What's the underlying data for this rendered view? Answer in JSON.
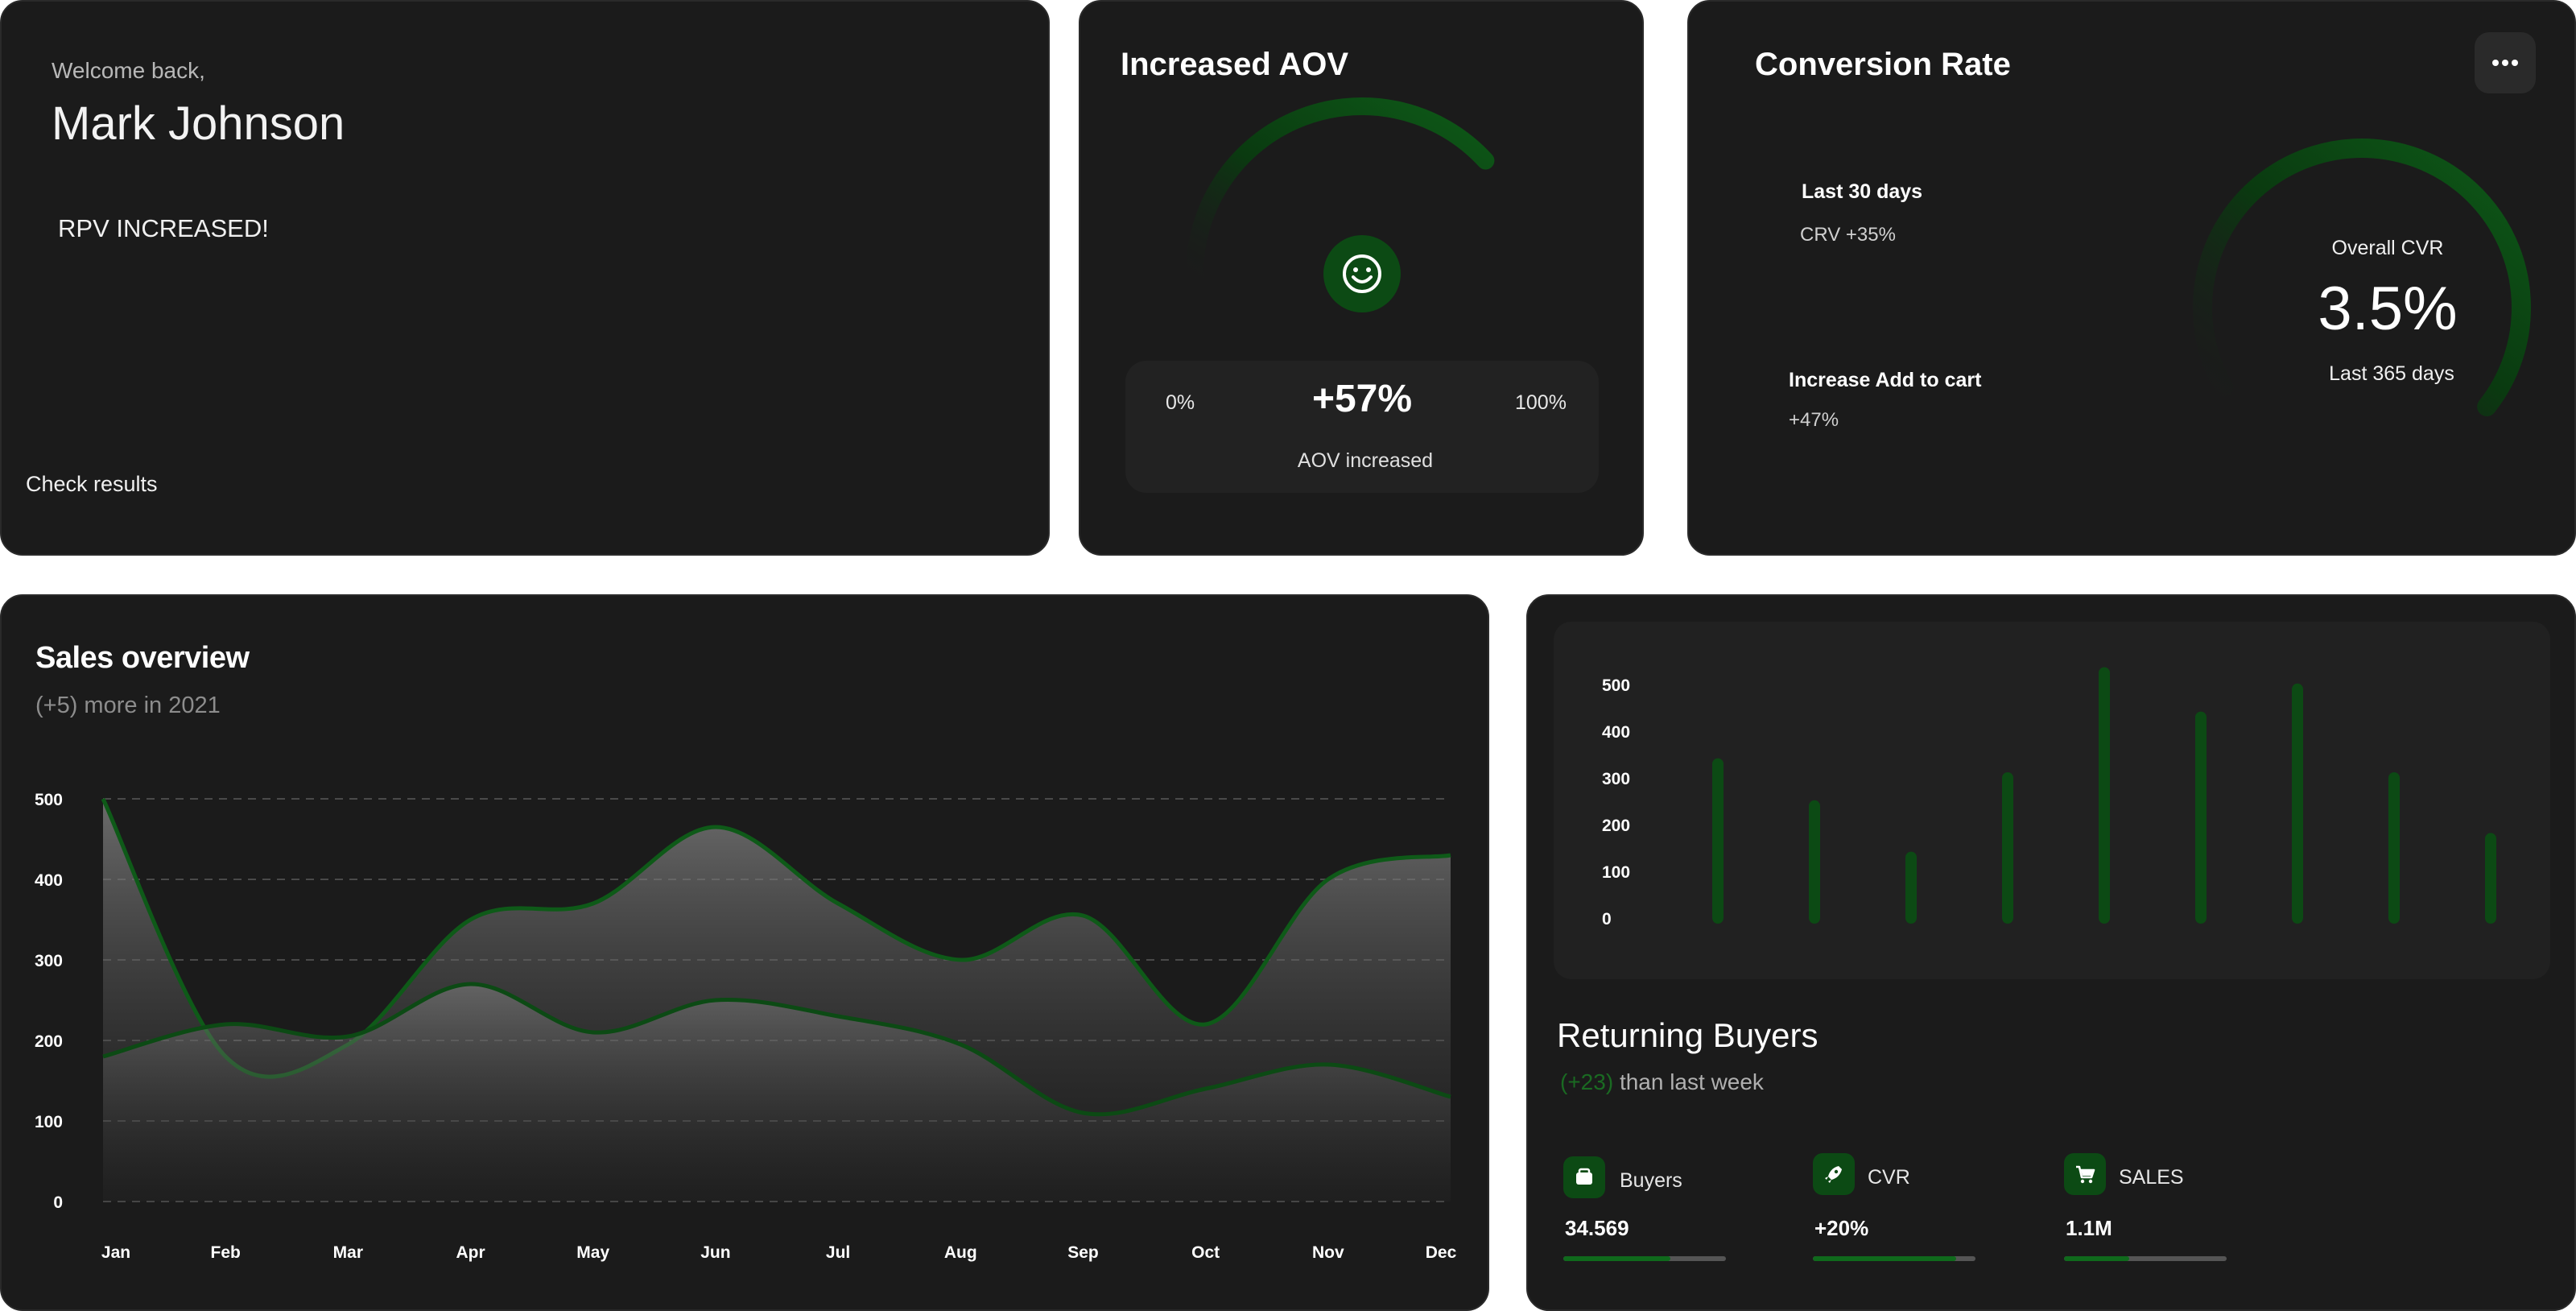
{
  "welcome": {
    "greeting": "Welcome back,",
    "name": "Mark Johnson",
    "message": "RPV INCREASED!",
    "link": "Check results"
  },
  "aov": {
    "title": "Increased AOV",
    "min_label": "0%",
    "max_label": "100%",
    "value": "+57%",
    "caption": "AOV increased",
    "icon": "smiley-icon",
    "gauge_fraction": 0.57
  },
  "conversion": {
    "title": "Conversion Rate",
    "menu_icon": "ellipsis-icon",
    "stats": [
      {
        "label": "Last 30 days",
        "value": "CRV +35%"
      },
      {
        "label": "Increase Add to cart",
        "value": "+47%"
      }
    ],
    "gauge": {
      "label": "Overall CVR",
      "value": "3.5%",
      "caption": "Last 365 days",
      "fraction": 0.72
    }
  },
  "sales": {
    "title": "Sales overview",
    "subtitle": "(+5) more in 2021"
  },
  "buyers": {
    "title": "Returning Buyers",
    "delta": "(+23)",
    "delta_text": "than last week",
    "metrics": [
      {
        "label": "Buyers",
        "value": "34.569",
        "icon": "wallet-icon",
        "progress": 0.66
      },
      {
        "label": "CVR",
        "value": "+20%",
        "icon": "rocket-icon",
        "progress": 0.88
      },
      {
        "label": "SALES",
        "value": "1.1M",
        "icon": "cart-icon",
        "progress": 0.4
      }
    ]
  },
  "colors": {
    "card": "#1b1b1b",
    "accent": "#0f6a1c",
    "accent_dark": "#0c4a14",
    "grid": "#4a4a4a"
  },
  "chart_data": [
    {
      "type": "area",
      "categories": [
        "Jan",
        "Feb",
        "Mar",
        "Apr",
        "May",
        "Jun",
        "Jul",
        "Aug",
        "Sep",
        "Oct",
        "Nov",
        "Dec"
      ],
      "series": [
        {
          "values": [
            500,
            180,
            195,
            350,
            370,
            465,
            370,
            300,
            355,
            220,
            400,
            430
          ]
        },
        {
          "values": [
            180,
            220,
            205,
            270,
            210,
            250,
            230,
            195,
            110,
            140,
            170,
            130
          ]
        }
      ],
      "yticks": [
        0,
        100,
        200,
        300,
        400,
        500
      ],
      "ylim": [
        0,
        500
      ],
      "grid": true
    },
    {
      "type": "bar",
      "values": [
        330,
        240,
        130,
        300,
        525,
        430,
        490,
        300,
        170
      ],
      "yticks": [
        0,
        100,
        200,
        300,
        400,
        500
      ],
      "ylim": [
        0,
        500
      ],
      "grid": false
    }
  ]
}
